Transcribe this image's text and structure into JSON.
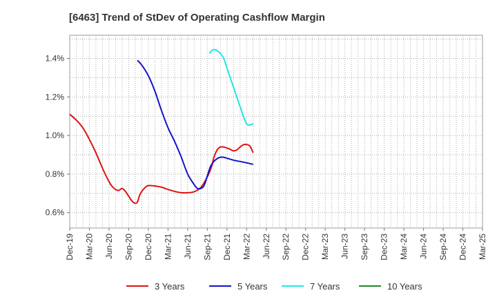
{
  "chart_data": {
    "type": "line",
    "title": "[6463]  Trend of StDev of Operating Cashflow Margin",
    "xlabel": "",
    "ylabel": "",
    "x_ticks": [
      "Dec-19",
      "Mar-20",
      "Jun-20",
      "Sep-20",
      "Dec-20",
      "Mar-21",
      "Jun-21",
      "Sep-21",
      "Dec-21",
      "Mar-22",
      "Jun-22",
      "Sep-22",
      "Dec-22",
      "Mar-23",
      "Jun-23",
      "Sep-23",
      "Dec-23",
      "Mar-24",
      "Jun-24",
      "Sep-24",
      "Dec-24",
      "Mar-25"
    ],
    "y_ticks": [
      "0.6%",
      "0.8%",
      "1.0%",
      "1.2%",
      "1.4%"
    ],
    "y_tick_values": [
      0.6,
      0.8,
      1.0,
      1.2,
      1.4
    ],
    "ylim": [
      0.52,
      1.52
    ],
    "grid": true,
    "legend_position": "bottom",
    "series": [
      {
        "name": "3 Years",
        "color": "#dd1111",
        "values": [
          [
            0,
            1.11
          ],
          [
            1,
            1.08
          ],
          [
            2,
            1.04
          ],
          [
            3,
            0.98
          ],
          [
            4,
            0.91
          ],
          [
            5,
            0.83
          ],
          [
            6,
            0.76
          ],
          [
            6.5,
            0.735
          ],
          [
            7,
            0.72
          ],
          [
            7.5,
            0.715
          ],
          [
            8,
            0.725
          ],
          [
            8.5,
            0.71
          ],
          [
            9,
            0.685
          ],
          [
            9.5,
            0.66
          ],
          [
            10,
            0.648
          ],
          [
            10.33,
            0.655
          ],
          [
            10.67,
            0.69
          ],
          [
            11,
            0.71
          ],
          [
            11.5,
            0.73
          ],
          [
            12,
            0.74
          ],
          [
            13,
            0.738
          ],
          [
            14,
            0.732
          ],
          [
            15,
            0.72
          ],
          [
            16,
            0.71
          ],
          [
            17,
            0.703
          ],
          [
            18,
            0.703
          ],
          [
            19,
            0.708
          ],
          [
            20,
            0.73
          ],
          [
            21,
            0.785
          ],
          [
            21.67,
            0.84
          ],
          [
            22,
            0.885
          ],
          [
            22.5,
            0.925
          ],
          [
            23,
            0.94
          ],
          [
            23.5,
            0.94
          ],
          [
            24,
            0.935
          ],
          [
            24.5,
            0.928
          ],
          [
            25,
            0.92
          ],
          [
            25.5,
            0.925
          ],
          [
            26,
            0.94
          ],
          [
            26.5,
            0.952
          ],
          [
            27,
            0.953
          ],
          [
            27.5,
            0.945
          ],
          [
            28,
            0.91
          ]
        ]
      },
      {
        "name": "5 Years",
        "color": "#1111cc",
        "values": [
          [
            10.33,
            1.39
          ],
          [
            11,
            1.365
          ],
          [
            12,
            1.31
          ],
          [
            13,
            1.23
          ],
          [
            14,
            1.13
          ],
          [
            15,
            1.04
          ],
          [
            16,
            0.97
          ],
          [
            17,
            0.89
          ],
          [
            18,
            0.8
          ],
          [
            19,
            0.745
          ],
          [
            19.5,
            0.725
          ],
          [
            20,
            0.725
          ],
          [
            20.5,
            0.74
          ],
          [
            21,
            0.79
          ],
          [
            21.5,
            0.84
          ],
          [
            22,
            0.865
          ],
          [
            22.5,
            0.88
          ],
          [
            23,
            0.887
          ],
          [
            23.5,
            0.887
          ],
          [
            24,
            0.882
          ],
          [
            25,
            0.872
          ],
          [
            26,
            0.865
          ],
          [
            27,
            0.858
          ],
          [
            28,
            0.85
          ]
        ]
      },
      {
        "name": "7 Years",
        "color": "#22e5e5",
        "values": [
          [
            21.33,
            1.425
          ],
          [
            21.67,
            1.44
          ],
          [
            22,
            1.445
          ],
          [
            22.5,
            1.44
          ],
          [
            23,
            1.425
          ],
          [
            23.5,
            1.4
          ],
          [
            24,
            1.35
          ],
          [
            25,
            1.25
          ],
          [
            26,
            1.15
          ],
          [
            27,
            1.06
          ],
          [
            28,
            1.06
          ]
        ]
      },
      {
        "name": "10 Years",
        "color": "#228822",
        "values": []
      }
    ]
  }
}
